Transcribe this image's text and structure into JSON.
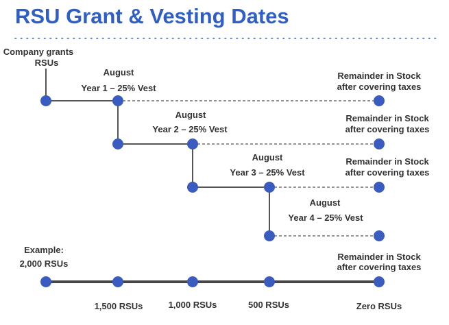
{
  "title": "RSU Grant & Vesting Dates",
  "grant_label": [
    "Company grants",
    "RSUs"
  ],
  "vests": [
    {
      "month": "August",
      "label": "Year 1 – 25% Vest",
      "remainder": [
        "Remainder in Stock",
        "after covering taxes"
      ]
    },
    {
      "month": "August",
      "label": "Year 2 – 25% Vest",
      "remainder": [
        "Remainder in Stock",
        "after covering taxes"
      ]
    },
    {
      "month": "August",
      "label": "Year 3 – 25% Vest",
      "remainder": [
        "Remainder in Stock",
        "after covering taxes"
      ]
    },
    {
      "month": "August",
      "label": "Year 4 – 25% Vest"
    }
  ],
  "example": {
    "label": "Example:",
    "amount": "2,000 RSUs",
    "remainder": [
      "Remainder in Stock",
      "after covering taxes"
    ],
    "milestones": [
      "1,500 RSUs",
      "1,000 RSUs",
      "500 RSUs",
      "Zero RSUs"
    ]
  },
  "colors": {
    "title": "#2f5fc4",
    "node": "#3a5bbf",
    "line": "#555555",
    "text": "#333333"
  }
}
